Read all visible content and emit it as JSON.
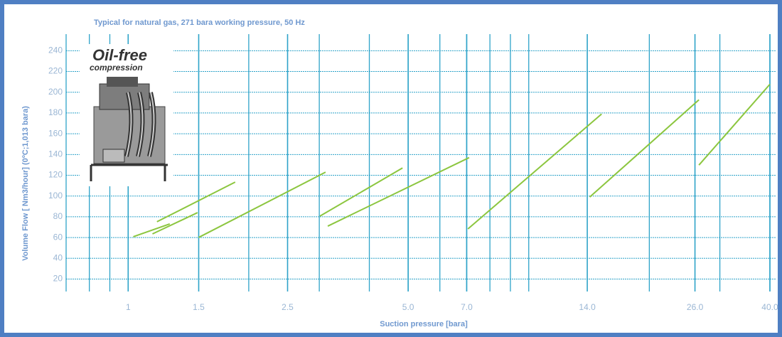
{
  "chart_data": {
    "type": "line",
    "title": "Typical for natural gas, 271 bara working pressure, 50 Hz",
    "x_label": "Suction pressure  [bara]",
    "y_label": "Volume Flow [ Nm3/hour] (0ºC;1,013 bara)",
    "annotations": [
      "Oil-free",
      "compression"
    ],
    "x_scale": "log",
    "grid": true,
    "xlim": [
      0.7,
      41.5
    ],
    "ylim": [
      8,
      256
    ],
    "xticks": [
      1,
      1.5,
      2.5,
      {
        "value": 5,
        "label": "5.0"
      },
      {
        "value": 7,
        "label": "7.0"
      },
      {
        "value": 14,
        "label": "14.0"
      },
      {
        "value": 26,
        "label": "26.0"
      },
      {
        "value": 40,
        "label": "40.0"
      }
    ],
    "yticks": [
      20,
      40,
      60,
      80,
      100,
      120,
      140,
      160,
      180,
      200,
      220,
      240
    ],
    "series": [
      {
        "color": "#8cc63f",
        "x": [
          1.03,
          1.27
        ],
        "values": [
          60.8,
          73.1
        ]
      },
      {
        "color": "#8cc63f",
        "x": [
          1.15,
          1.49
        ],
        "values": [
          63.5,
          84
        ]
      },
      {
        "color": "#8cc63f",
        "x": [
          1.18,
          1.85
        ],
        "values": [
          75.2,
          113.4
        ]
      },
      {
        "color": "#8cc63f",
        "x": [
          1.5,
          3.11
        ],
        "values": [
          60.1,
          123
        ]
      },
      {
        "color": "#8cc63f",
        "x": [
          3.01,
          4.84
        ],
        "values": [
          80.6,
          127
        ]
      },
      {
        "color": "#8cc63f",
        "x": [
          3.15,
          7.1
        ],
        "values": [
          71,
          137
        ]
      },
      {
        "color": "#8cc63f",
        "x": [
          7.05,
          15.2
        ],
        "values": [
          68.3,
          179
        ]
      },
      {
        "color": "#8cc63f",
        "x": [
          14.2,
          26.6
        ],
        "values": [
          99,
          192.7
        ]
      },
      {
        "color": "#8cc63f",
        "x": [
          26.6,
          40
        ],
        "values": [
          129.8,
          207.7
        ]
      }
    ]
  }
}
